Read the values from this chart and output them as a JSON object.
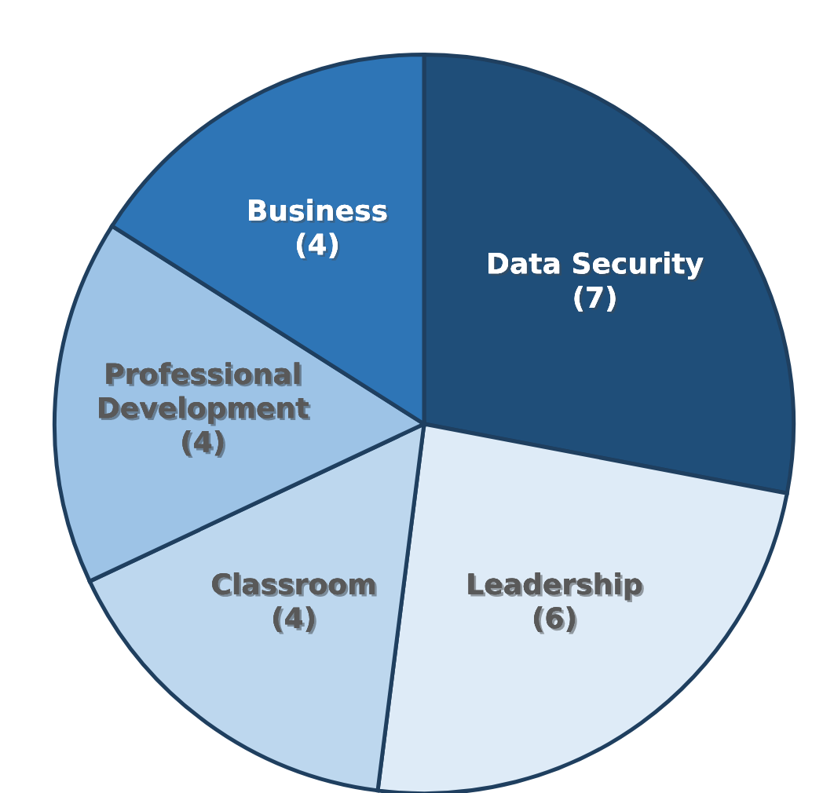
{
  "chart_data": {
    "type": "pie",
    "categories": [
      "Data Security",
      "Leadership",
      "Classroom",
      "Professional Development",
      "Business"
    ],
    "values": [
      7,
      6,
      4,
      4,
      4
    ],
    "colors": [
      "#1f4e79",
      "#deebf7",
      "#bdd7ee",
      "#9dc3e6",
      "#2e75b6"
    ],
    "value_labels": [
      "(7)",
      "(6)",
      "(4)",
      "(4)",
      "(4)"
    ]
  }
}
